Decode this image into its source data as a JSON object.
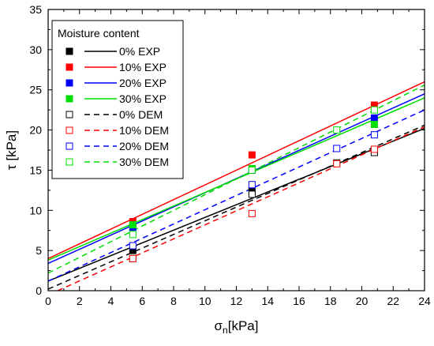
{
  "chart_data": {
    "type": "scatter",
    "xlabel": "σn[kPa]",
    "ylabel": "τ [kPa]",
    "xlim": [
      0,
      24
    ],
    "ylim": [
      0,
      35
    ],
    "x_ticks": [
      0,
      2,
      4,
      6,
      8,
      10,
      12,
      14,
      16,
      18,
      20,
      22,
      24
    ],
    "y_ticks": [
      0,
      5,
      10,
      15,
      20,
      25,
      30,
      35
    ],
    "grid": false,
    "legend": {
      "title": "Moisture content",
      "placement": "top-left"
    },
    "series": [
      {
        "name": "0% EXP",
        "color": "#000000",
        "marker": "filled-square",
        "line": "solid",
        "points": [
          [
            5.4,
            5.0
          ],
          [
            13.0,
            12.4
          ],
          [
            20.8,
            17.4
          ]
        ],
        "fit": [
          [
            0,
            1.2
          ],
          [
            24,
            20.2
          ]
        ]
      },
      {
        "name": "10% EXP",
        "color": "#ff0000",
        "marker": "filled-square",
        "line": "solid",
        "points": [
          [
            5.4,
            8.6
          ],
          [
            13.0,
            16.9
          ],
          [
            20.8,
            23.1
          ]
        ],
        "fit": [
          [
            0,
            4.0
          ],
          [
            24,
            26.0
          ]
        ]
      },
      {
        "name": "20% EXP",
        "color": "#0000ff",
        "marker": "filled-square",
        "line": "solid",
        "points": [
          [
            5.4,
            7.9
          ],
          [
            13.0,
            15.0
          ],
          [
            20.8,
            21.5
          ]
        ],
        "fit": [
          [
            0,
            3.4
          ],
          [
            24,
            24.5
          ]
        ]
      },
      {
        "name": "30% EXP",
        "color": "#00dd00",
        "marker": "filled-square",
        "line": "solid",
        "points": [
          [
            5.4,
            8.2
          ],
          [
            13.0,
            15.2
          ],
          [
            20.8,
            20.7
          ]
        ],
        "fit": [
          [
            0,
            3.8
          ],
          [
            24,
            24.0
          ]
        ]
      },
      {
        "name": "0% DEM",
        "color": "#000000",
        "marker": "open-square",
        "line": "dashed",
        "points": [
          [
            5.4,
            4.0
          ],
          [
            13.0,
            12.0
          ],
          [
            18.4,
            15.9
          ],
          [
            20.8,
            17.2
          ]
        ],
        "fit": [
          [
            0,
            0.2
          ],
          [
            24,
            20.6
          ]
        ]
      },
      {
        "name": "10% DEM",
        "color": "#ff0000",
        "marker": "open-square",
        "line": "dashed",
        "points": [
          [
            5.4,
            4.0
          ],
          [
            13.0,
            9.6
          ],
          [
            18.4,
            15.8
          ],
          [
            20.8,
            17.6
          ]
        ],
        "fit": [
          [
            0.6,
            0
          ],
          [
            24,
            20.4
          ]
        ]
      },
      {
        "name": "20% DEM",
        "color": "#0000ff",
        "marker": "open-square",
        "line": "dashed",
        "points": [
          [
            5.4,
            5.6
          ],
          [
            13.0,
            13.2
          ],
          [
            18.4,
            17.7
          ],
          [
            20.8,
            19.4
          ]
        ],
        "fit": [
          [
            0,
            1.2
          ],
          [
            24,
            22.5
          ]
        ]
      },
      {
        "name": "30% DEM",
        "color": "#00dd00",
        "marker": "open-square",
        "line": "dashed",
        "points": [
          [
            5.4,
            7.0
          ],
          [
            13.0,
            15.0
          ],
          [
            18.4,
            20.0
          ],
          [
            20.8,
            22.5
          ]
        ],
        "fit": [
          [
            0,
            2.2
          ],
          [
            24,
            25.6
          ]
        ]
      }
    ]
  }
}
